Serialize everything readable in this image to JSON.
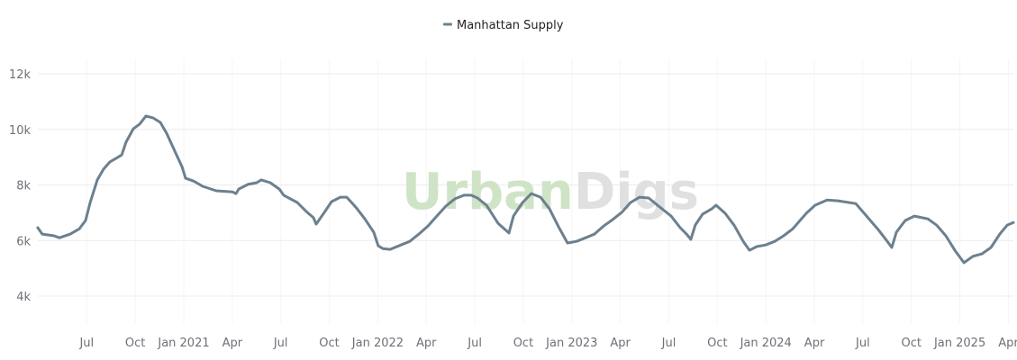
{
  "watermark": {
    "part1": "Urban",
    "part2": "Digs",
    "color1": "#cfe4c6",
    "color2": "#e0e0e0"
  },
  "chart_data": {
    "type": "line",
    "title": "",
    "xlabel": "",
    "ylabel": "",
    "x_units": "months since Jan 2020",
    "legend": {
      "position": "top-center",
      "entries": [
        "Manhattan Supply"
      ]
    },
    "grid": true,
    "ylim": [
      3000,
      12500
    ],
    "xlim": [
      2.97,
      63.4
    ],
    "y_ticks": [
      {
        "value": 4000,
        "label": "4k"
      },
      {
        "value": 6000,
        "label": "6k"
      },
      {
        "value": 8000,
        "label": "8k"
      },
      {
        "value": 10000,
        "label": "10k"
      },
      {
        "value": 12000,
        "label": "12k"
      }
    ],
    "x_ticks": [
      {
        "value": 6,
        "label": "Jul"
      },
      {
        "value": 9,
        "label": "Oct"
      },
      {
        "value": 12,
        "label": "Jan 2021"
      },
      {
        "value": 15,
        "label": "Apr"
      },
      {
        "value": 18,
        "label": "Jul"
      },
      {
        "value": 21,
        "label": "Oct"
      },
      {
        "value": 24,
        "label": "Jan 2022"
      },
      {
        "value": 27,
        "label": "Apr"
      },
      {
        "value": 30,
        "label": "Jul"
      },
      {
        "value": 33,
        "label": "Oct"
      },
      {
        "value": 36,
        "label": "Jan 2023"
      },
      {
        "value": 39,
        "label": "Apr"
      },
      {
        "value": 42,
        "label": "Jul"
      },
      {
        "value": 45,
        "label": "Oct"
      },
      {
        "value": 48,
        "label": "Jan 2024"
      },
      {
        "value": 51,
        "label": "Apr"
      },
      {
        "value": 54,
        "label": "Jul"
      },
      {
        "value": 57,
        "label": "Oct"
      },
      {
        "value": 60,
        "label": "Jan 2025"
      },
      {
        "value": 63,
        "label": "Apr"
      }
    ],
    "series": [
      {
        "name": "Manhattan Supply",
        "color": "#6c808e",
        "x": [
          2.97,
          3.25,
          3.98,
          4.31,
          4.98,
          5.54,
          5.93,
          6.21,
          6.65,
          7.04,
          7.43,
          8.16,
          8.43,
          8.88,
          9.27,
          9.66,
          10.11,
          10.55,
          10.94,
          11.5,
          11.89,
          12.11,
          12.61,
          13.17,
          14.01,
          15.01,
          15.23,
          15.4,
          15.96,
          16.51,
          16.79,
          17.35,
          17.91,
          18.18,
          19.02,
          19.58,
          20.02,
          20.19,
          20.69,
          21.14,
          21.69,
          22.08,
          22.64,
          23.2,
          23.75,
          24.03,
          24.31,
          24.76,
          25.43,
          25.98,
          26.54,
          27.1,
          27.65,
          28.21,
          28.77,
          29.33,
          29.77,
          30.16,
          30.72,
          31.44,
          32.11,
          32.39,
          32.95,
          33.5,
          34.06,
          34.62,
          35.18,
          35.73,
          36.29,
          36.85,
          37.4,
          37.96,
          38.52,
          39.08,
          39.63,
          40.19,
          40.75,
          41.3,
          42.14,
          42.7,
          43.09,
          43.36,
          43.64,
          44.09,
          44.65,
          44.92,
          45.48,
          46.04,
          46.6,
          46.99,
          47.43,
          47.99,
          48.55,
          49.1,
          49.66,
          50.5,
          51.05,
          51.78,
          52.45,
          53.56,
          54.12,
          54.95,
          55.51,
          55.79,
          56.07,
          56.62,
          57.18,
          58.02,
          58.57,
          59.13,
          59.69,
          60.25,
          60.8,
          61.36,
          61.92,
          62.47,
          62.92,
          63.31
        ],
        "values": [
          6460,
          6230,
          6170,
          6100,
          6230,
          6420,
          6720,
          7370,
          8180,
          8570,
          8830,
          9080,
          9540,
          10020,
          10190,
          10480,
          10410,
          10250,
          9860,
          9150,
          8660,
          8240,
          8140,
          7950,
          7790,
          7750,
          7690,
          7850,
          8020,
          8080,
          8180,
          8080,
          7850,
          7630,
          7370,
          7040,
          6820,
          6590,
          7010,
          7400,
          7560,
          7560,
          7200,
          6780,
          6300,
          5810,
          5710,
          5680,
          5840,
          5970,
          6230,
          6520,
          6880,
          7240,
          7500,
          7630,
          7630,
          7530,
          7270,
          6620,
          6270,
          6880,
          7370,
          7690,
          7560,
          7140,
          6490,
          5910,
          5970,
          6100,
          6230,
          6520,
          6750,
          7010,
          7370,
          7560,
          7530,
          7270,
          6880,
          6460,
          6230,
          6040,
          6560,
          6950,
          7140,
          7270,
          6980,
          6550,
          5970,
          5650,
          5780,
          5840,
          5970,
          6170,
          6420,
          6980,
          7270,
          7460,
          7430,
          7330,
          6950,
          6390,
          5970,
          5750,
          6300,
          6720,
          6880,
          6780,
          6550,
          6170,
          5650,
          5200,
          5430,
          5520,
          5750,
          6230,
          6550,
          6650
        ]
      }
    ]
  }
}
